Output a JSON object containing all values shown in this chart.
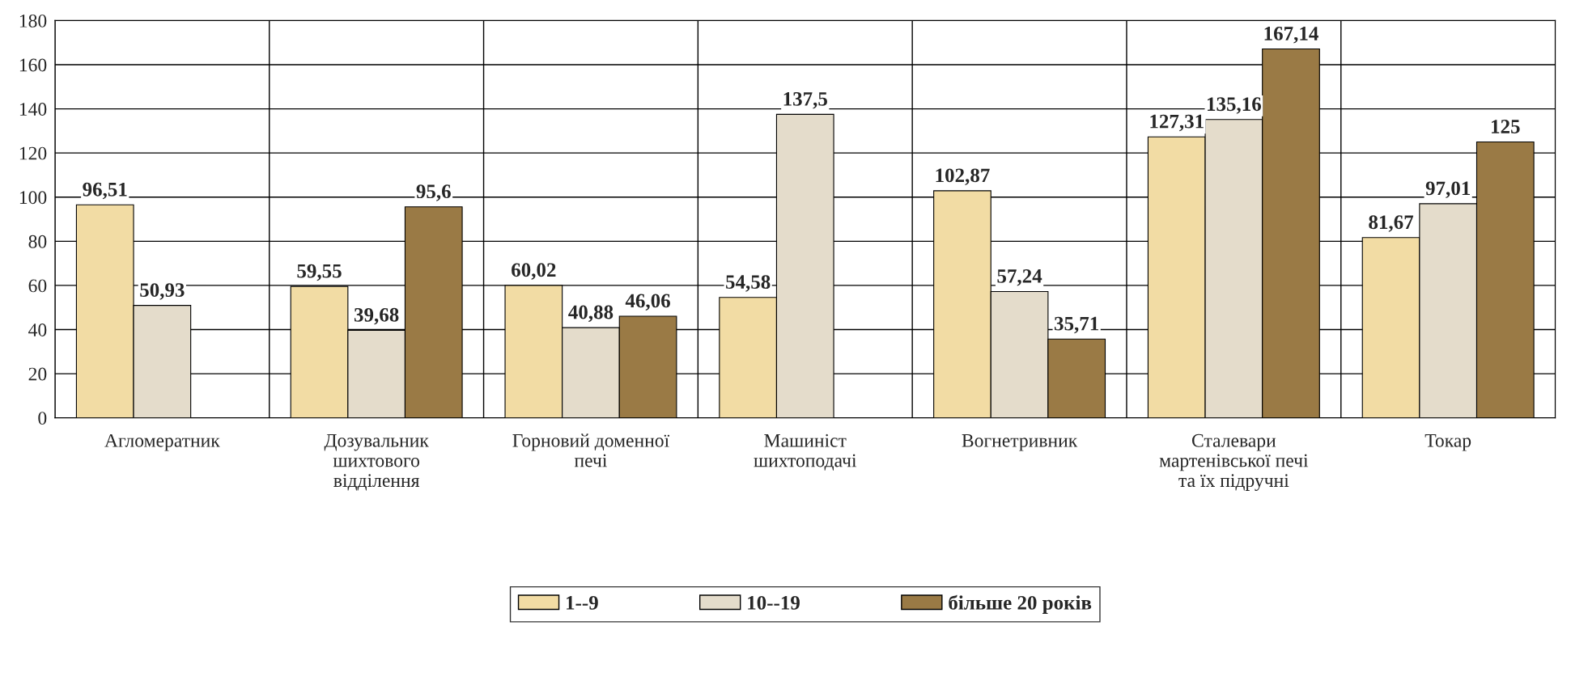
{
  "chart_data": {
    "type": "bar",
    "categories": [
      "Агломератник",
      "Дозувальник\nшихтового\nвідділення",
      "Горновий доменної\nпечі",
      "Машиніст\nшихтоподачі",
      "Вогнетривник",
      "Сталевари\nмартенівської печі\nта їх підручні",
      "Токар"
    ],
    "series": [
      {
        "name": "1--9",
        "color": "#f2dca4",
        "values": [
          96.51,
          59.55,
          60.02,
          54.58,
          102.87,
          127.31,
          81.67
        ],
        "value_labels": [
          "96,51",
          "59,55",
          "60,02",
          "54,58",
          "102,87",
          "127,31",
          "81,67"
        ]
      },
      {
        "name": "10--19",
        "color": "#e4dccb",
        "values": [
          50.93,
          39.68,
          40.88,
          137.5,
          57.24,
          135.16,
          97.01
        ],
        "value_labels": [
          "50,93",
          "39,68",
          "40,88",
          "137,5",
          "57,24",
          "135,16",
          "97,01"
        ]
      },
      {
        "name": "більше 20 років",
        "color": "#9a7a45",
        "values": [
          null,
          95.6,
          46.06,
          null,
          35.71,
          167.14,
          125
        ],
        "value_labels": [
          null,
          "95,6",
          "46,06",
          null,
          "35,71",
          "167,14",
          "125"
        ]
      }
    ],
    "ylim": [
      0,
      180
    ],
    "yticks": [
      0,
      20,
      40,
      60,
      80,
      100,
      120,
      140,
      160,
      180
    ],
    "grid": true,
    "legend": "bottom"
  }
}
